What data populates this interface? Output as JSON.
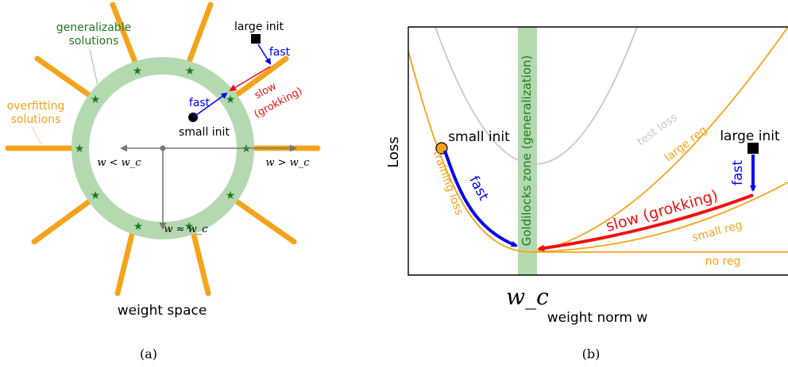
{
  "panel_a": {
    "generalizable_label_line1": "generalizable",
    "generalizable_label_line2": "solutions",
    "overfitting_label_line1": "overfitting",
    "overfitting_label_line2": "solutions",
    "large_init": "large init",
    "small_init": "small init",
    "fast_top": "fast",
    "fast_mid": "fast",
    "slow_line1": "slow",
    "slow_line2": "(grokking)",
    "w_less": "w < w_c",
    "w_greater": "w > w_c",
    "w_approx": "w ≈ w_c",
    "caption_weight_space": "weight space",
    "panel_caption": "(a)"
  },
  "panel_b": {
    "ylabel": "Loss",
    "xlabel": "weight norm w",
    "xtick": "w_c",
    "goldilocks": "Goldilocks zone (generalization)",
    "small_init": "small init",
    "large_init": "large init",
    "fast_left": "fast",
    "fast_right": "fast",
    "slow": "slow (grokking)",
    "test_loss": "test loss",
    "training_loss": "training loss",
    "large_reg": "large reg",
    "small_reg": "small reg",
    "no_reg": "no reg",
    "panel_caption": "(b)"
  },
  "colors": {
    "orange": "#f5a31a",
    "green_ring": "#b4d9b0",
    "star": "#1d7a1d",
    "blue": "#0000ee",
    "red": "#ee1111",
    "gray": "#c8c8c8",
    "axis_gray": "#777777"
  }
}
